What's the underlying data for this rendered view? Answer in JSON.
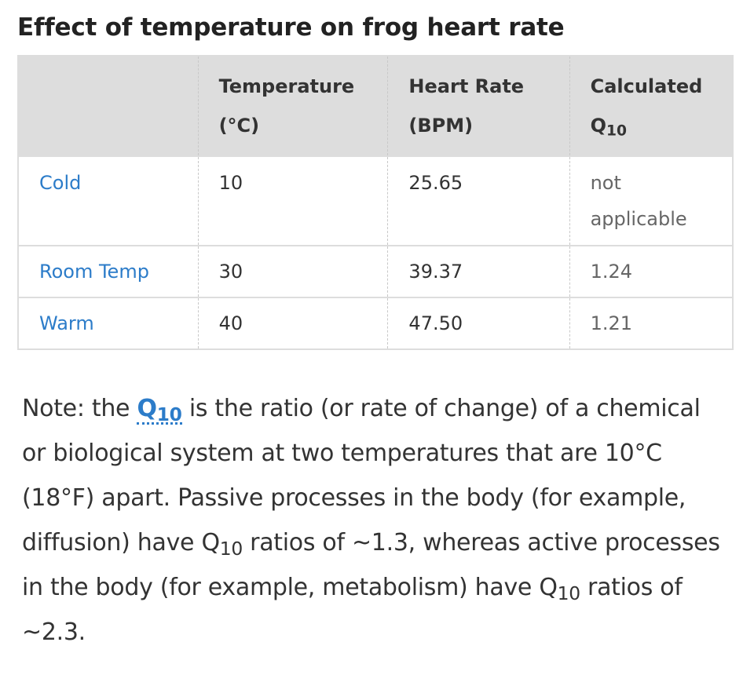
{
  "title": "Effect of temperature on frog heart rate",
  "table": {
    "headers": {
      "temperature_line1": "Temperature",
      "temperature_line2": "(°C)",
      "heart_rate_line1": "Heart Rate",
      "heart_rate_line2": "(BPM)",
      "q10_line1": "Calculated",
      "q10_Q": "Q",
      "q10_sub": "10"
    },
    "rows": [
      {
        "label": "Cold",
        "temperature": "10",
        "heart_rate": "25.65",
        "q10_line1": "not",
        "q10_line2": "applicable"
      },
      {
        "label": "Room Temp",
        "temperature": "30",
        "heart_rate": "39.37",
        "q10": "1.24"
      },
      {
        "label": "Warm",
        "temperature": "40",
        "heart_rate": "47.50",
        "q10": "1.21"
      }
    ]
  },
  "note": {
    "prefix": "Note: the ",
    "term_Q": "Q",
    "term_sub": "10",
    "part1": " is the ratio (or rate of change) of a chemical or biological system at two temperatures that are 10°C (18°F) apart. Passive processes in the body (for example, diffusion) have ",
    "q_Q": "Q",
    "q_sub": "10",
    "part2": " ratios of ~1.3, whereas active processes in the body (for example, metabolism) have ",
    "part3": " ratios of ~2.3."
  },
  "colors": {
    "link": "#2c7cc9",
    "header_bg": "#dddddd",
    "text": "#333333"
  }
}
